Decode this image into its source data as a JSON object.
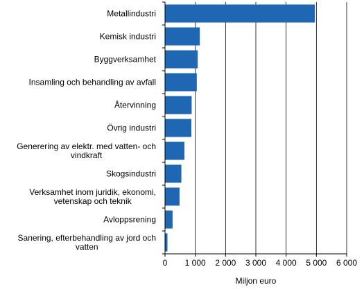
{
  "chart_data": {
    "type": "bar",
    "orientation": "horizontal",
    "categories": [
      "Metallindustri",
      "Kemisk industri",
      "Byggverksamhet",
      "Insamling och behandling av avfall",
      "Återvinning",
      "Övrig industri",
      "Generering av elektr. med vatten- och vindkraft",
      "Skogsindustri",
      "Verksamhet inom juridik, ekonomi, vetenskap och teknik",
      "Avloppsrening",
      "Sanering, efterbehandling av jord och vatten"
    ],
    "category_lines": [
      [
        "Metallindustri"
      ],
      [
        "Kemisk industri"
      ],
      [
        "Byggverksamhet"
      ],
      [
        "Insamling och behandling av avfall"
      ],
      [
        "Återvinning"
      ],
      [
        "Övrig industri"
      ],
      [
        "Generering av elektr. med vatten- och",
        "vindkraft"
      ],
      [
        "Skogsindustri"
      ],
      [
        "Verksamhet inom juridik, ekonomi,",
        "vetenskap och teknik"
      ],
      [
        "Avloppsrening"
      ],
      [
        "Sanering, efterbehandling av jord och",
        "vatten"
      ]
    ],
    "values": [
      4950,
      1150,
      1080,
      1050,
      880,
      870,
      640,
      540,
      480,
      250,
      80
    ],
    "xlabel": "Miljon euro",
    "ylabel": "",
    "xlim": [
      0,
      6000
    ],
    "ticks": [
      0,
      1000,
      2000,
      3000,
      4000,
      5000,
      6000
    ],
    "tick_labels": [
      "0",
      "1 000",
      "2 000",
      "3 000",
      "4 000",
      "5 000",
      "6 000"
    ],
    "grid": "vertical",
    "legend": "none",
    "colors": {
      "bar": "#1f66b3",
      "grid": "#000000",
      "axis": "#000000"
    }
  }
}
